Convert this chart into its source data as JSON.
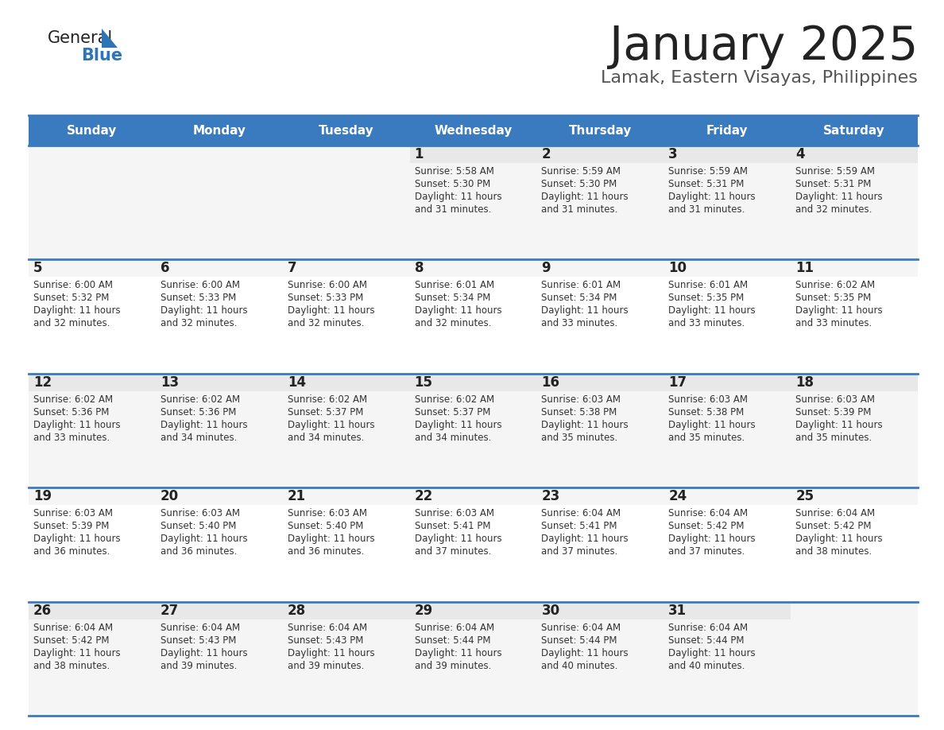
{
  "title": "January 2025",
  "subtitle": "Lamak, Eastern Visayas, Philippines",
  "days_of_week": [
    "Sunday",
    "Monday",
    "Tuesday",
    "Wednesday",
    "Thursday",
    "Friday",
    "Saturday"
  ],
  "header_bg": "#3a7abf",
  "header_text": "#ffffff",
  "day_num_bg_odd": "#e8e8e8",
  "day_num_bg_even": "#f5f5f5",
  "cell_bg_odd": "#f5f5f5",
  "cell_bg_even": "#ffffff",
  "separator_color": "#3a7abf",
  "day_num_color": "#222222",
  "cell_text_color": "#333333",
  "title_color": "#222222",
  "subtitle_color": "#555555",
  "logo_general_color": "#222222",
  "logo_blue_color": "#2e75b6",
  "logo_triangle_color": "#2e75b6",
  "calendar": [
    [
      {
        "day": "",
        "sunrise": "",
        "sunset": "",
        "daylight": ""
      },
      {
        "day": "",
        "sunrise": "",
        "sunset": "",
        "daylight": ""
      },
      {
        "day": "",
        "sunrise": "",
        "sunset": "",
        "daylight": ""
      },
      {
        "day": "1",
        "sunrise": "5:58 AM",
        "sunset": "5:30 PM",
        "daylight": "11 hours and 31 minutes."
      },
      {
        "day": "2",
        "sunrise": "5:59 AM",
        "sunset": "5:30 PM",
        "daylight": "11 hours and 31 minutes."
      },
      {
        "day": "3",
        "sunrise": "5:59 AM",
        "sunset": "5:31 PM",
        "daylight": "11 hours and 31 minutes."
      },
      {
        "day": "4",
        "sunrise": "5:59 AM",
        "sunset": "5:31 PM",
        "daylight": "11 hours and 32 minutes."
      }
    ],
    [
      {
        "day": "5",
        "sunrise": "6:00 AM",
        "sunset": "5:32 PM",
        "daylight": "11 hours and 32 minutes."
      },
      {
        "day": "6",
        "sunrise": "6:00 AM",
        "sunset": "5:33 PM",
        "daylight": "11 hours and 32 minutes."
      },
      {
        "day": "7",
        "sunrise": "6:00 AM",
        "sunset": "5:33 PM",
        "daylight": "11 hours and 32 minutes."
      },
      {
        "day": "8",
        "sunrise": "6:01 AM",
        "sunset": "5:34 PM",
        "daylight": "11 hours and 32 minutes."
      },
      {
        "day": "9",
        "sunrise": "6:01 AM",
        "sunset": "5:34 PM",
        "daylight": "11 hours and 33 minutes."
      },
      {
        "day": "10",
        "sunrise": "6:01 AM",
        "sunset": "5:35 PM",
        "daylight": "11 hours and 33 minutes."
      },
      {
        "day": "11",
        "sunrise": "6:02 AM",
        "sunset": "5:35 PM",
        "daylight": "11 hours and 33 minutes."
      }
    ],
    [
      {
        "day": "12",
        "sunrise": "6:02 AM",
        "sunset": "5:36 PM",
        "daylight": "11 hours and 33 minutes."
      },
      {
        "day": "13",
        "sunrise": "6:02 AM",
        "sunset": "5:36 PM",
        "daylight": "11 hours and 34 minutes."
      },
      {
        "day": "14",
        "sunrise": "6:02 AM",
        "sunset": "5:37 PM",
        "daylight": "11 hours and 34 minutes."
      },
      {
        "day": "15",
        "sunrise": "6:02 AM",
        "sunset": "5:37 PM",
        "daylight": "11 hours and 34 minutes."
      },
      {
        "day": "16",
        "sunrise": "6:03 AM",
        "sunset": "5:38 PM",
        "daylight": "11 hours and 35 minutes."
      },
      {
        "day": "17",
        "sunrise": "6:03 AM",
        "sunset": "5:38 PM",
        "daylight": "11 hours and 35 minutes."
      },
      {
        "day": "18",
        "sunrise": "6:03 AM",
        "sunset": "5:39 PM",
        "daylight": "11 hours and 35 minutes."
      }
    ],
    [
      {
        "day": "19",
        "sunrise": "6:03 AM",
        "sunset": "5:39 PM",
        "daylight": "11 hours and 36 minutes."
      },
      {
        "day": "20",
        "sunrise": "6:03 AM",
        "sunset": "5:40 PM",
        "daylight": "11 hours and 36 minutes."
      },
      {
        "day": "21",
        "sunrise": "6:03 AM",
        "sunset": "5:40 PM",
        "daylight": "11 hours and 36 minutes."
      },
      {
        "day": "22",
        "sunrise": "6:03 AM",
        "sunset": "5:41 PM",
        "daylight": "11 hours and 37 minutes."
      },
      {
        "day": "23",
        "sunrise": "6:04 AM",
        "sunset": "5:41 PM",
        "daylight": "11 hours and 37 minutes."
      },
      {
        "day": "24",
        "sunrise": "6:04 AM",
        "sunset": "5:42 PM",
        "daylight": "11 hours and 37 minutes."
      },
      {
        "day": "25",
        "sunrise": "6:04 AM",
        "sunset": "5:42 PM",
        "daylight": "11 hours and 38 minutes."
      }
    ],
    [
      {
        "day": "26",
        "sunrise": "6:04 AM",
        "sunset": "5:42 PM",
        "daylight": "11 hours and 38 minutes."
      },
      {
        "day": "27",
        "sunrise": "6:04 AM",
        "sunset": "5:43 PM",
        "daylight": "11 hours and 39 minutes."
      },
      {
        "day": "28",
        "sunrise": "6:04 AM",
        "sunset": "5:43 PM",
        "daylight": "11 hours and 39 minutes."
      },
      {
        "day": "29",
        "sunrise": "6:04 AM",
        "sunset": "5:44 PM",
        "daylight": "11 hours and 39 minutes."
      },
      {
        "day": "30",
        "sunrise": "6:04 AM",
        "sunset": "5:44 PM",
        "daylight": "11 hours and 40 minutes."
      },
      {
        "day": "31",
        "sunrise": "6:04 AM",
        "sunset": "5:44 PM",
        "daylight": "11 hours and 40 minutes."
      },
      {
        "day": "",
        "sunrise": "",
        "sunset": "",
        "daylight": ""
      }
    ]
  ]
}
